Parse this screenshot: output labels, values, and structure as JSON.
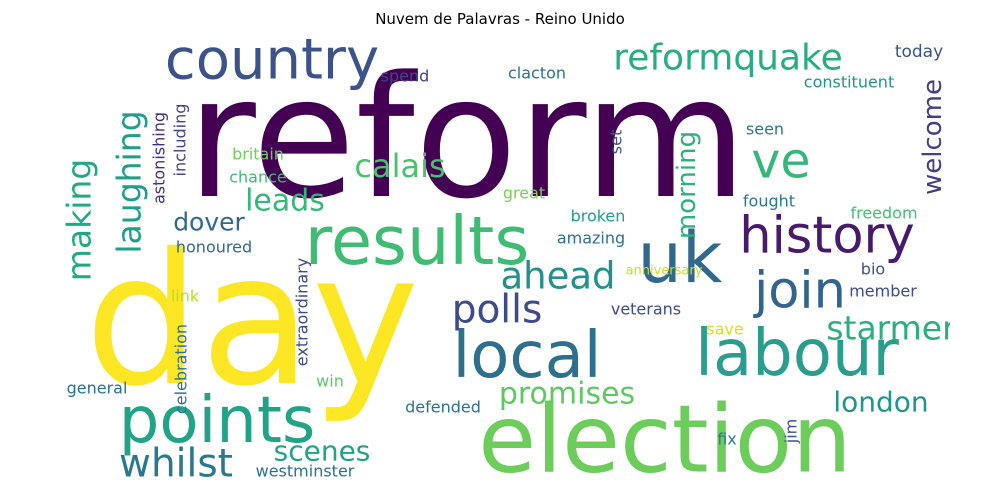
{
  "chart_data": {
    "type": "wordcloud",
    "title": "Nuvem de Palavras - Reino Unido",
    "colormap": "viridis",
    "background": "#ffffff",
    "words": [
      {
        "text": "reform",
        "weight": 1.0,
        "color": "#440154",
        "orientation": "horizontal"
      },
      {
        "text": "day",
        "weight": 0.97,
        "color": "#fde725",
        "orientation": "horizontal"
      },
      {
        "text": "election",
        "weight": 0.72,
        "color": "#6ccd5a",
        "orientation": "horizontal"
      },
      {
        "text": "uk",
        "weight": 0.5,
        "color": "#31688e",
        "orientation": "vertical"
      },
      {
        "text": "results",
        "weight": 0.5,
        "color": "#3fbc73",
        "orientation": "horizontal"
      },
      {
        "text": "labour",
        "weight": 0.49,
        "color": "#2a9d8f",
        "orientation": "horizontal"
      },
      {
        "text": "local",
        "weight": 0.48,
        "color": "#2d708e",
        "orientation": "horizontal"
      },
      {
        "text": "points",
        "weight": 0.48,
        "color": "#20a386",
        "orientation": "horizontal"
      },
      {
        "text": "country",
        "weight": 0.4,
        "color": "#3b528b",
        "orientation": "horizontal"
      },
      {
        "text": "history",
        "weight": 0.38,
        "color": "#481a6c",
        "orientation": "horizontal"
      },
      {
        "text": "join",
        "weight": 0.38,
        "color": "#32648e",
        "orientation": "horizontal"
      },
      {
        "text": "ve",
        "weight": 0.36,
        "color": "#35b779",
        "orientation": "horizontal"
      },
      {
        "text": "whilst",
        "weight": 0.3,
        "color": "#2a788e",
        "orientation": "horizontal"
      },
      {
        "text": "polls",
        "weight": 0.29,
        "color": "#3e4a89",
        "orientation": "horizontal"
      },
      {
        "text": "reformquake",
        "weight": 0.28,
        "color": "#27ad81",
        "orientation": "horizontal"
      },
      {
        "text": "ahead",
        "weight": 0.28,
        "color": "#21918c",
        "orientation": "horizontal"
      },
      {
        "text": "laughing",
        "weight": 0.27,
        "color": "#1f9e89",
        "orientation": "vertical"
      },
      {
        "text": "making",
        "weight": 0.27,
        "color": "#22a884",
        "orientation": "vertical"
      },
      {
        "text": "starmer",
        "weight": 0.26,
        "color": "#29af7f",
        "orientation": "horizontal"
      },
      {
        "text": "calais",
        "weight": 0.25,
        "color": "#4ac16d",
        "orientation": "horizontal"
      },
      {
        "text": "leads",
        "weight": 0.24,
        "color": "#35b779",
        "orientation": "horizontal"
      },
      {
        "text": "promises",
        "weight": 0.24,
        "color": "#5ec962",
        "orientation": "horizontal"
      },
      {
        "text": "scenes",
        "weight": 0.23,
        "color": "#20a486",
        "orientation": "horizontal"
      },
      {
        "text": "london",
        "weight": 0.22,
        "color": "#1f968b",
        "orientation": "horizontal"
      },
      {
        "text": "morning",
        "weight": 0.21,
        "color": "#2db27d",
        "orientation": "vertical"
      },
      {
        "text": "welcome",
        "weight": 0.21,
        "color": "#433e85",
        "orientation": "vertical"
      },
      {
        "text": "dover",
        "weight": 0.2,
        "color": "#31688e",
        "orientation": "horizontal"
      },
      {
        "text": "today",
        "weight": 0.13,
        "color": "#3b528b",
        "orientation": "horizontal"
      },
      {
        "text": "constituent",
        "weight": 0.12,
        "color": "#1f968b",
        "orientation": "horizontal"
      },
      {
        "text": "spend",
        "weight": 0.12,
        "color": "#414487",
        "orientation": "horizontal"
      },
      {
        "text": "clacton",
        "weight": 0.12,
        "color": "#2c728e",
        "orientation": "horizontal"
      },
      {
        "text": "seen",
        "weight": 0.12,
        "color": "#2a788e",
        "orientation": "horizontal"
      },
      {
        "text": "set",
        "weight": 0.12,
        "color": "#3b528b",
        "orientation": "vertical"
      },
      {
        "text": "britain",
        "weight": 0.12,
        "color": "#6ece58",
        "orientation": "horizontal"
      },
      {
        "text": "chance",
        "weight": 0.12,
        "color": "#3fbc73",
        "orientation": "horizontal"
      },
      {
        "text": "great",
        "weight": 0.12,
        "color": "#7ad151",
        "orientation": "horizontal"
      },
      {
        "text": "fought",
        "weight": 0.12,
        "color": "#2a788e",
        "orientation": "horizontal"
      },
      {
        "text": "freedom",
        "weight": 0.12,
        "color": "#44bf70",
        "orientation": "horizontal"
      },
      {
        "text": "broken",
        "weight": 0.12,
        "color": "#1f9e89",
        "orientation": "horizontal"
      },
      {
        "text": "amazing",
        "weight": 0.12,
        "color": "#2c728e",
        "orientation": "horizontal"
      },
      {
        "text": "honoured",
        "weight": 0.12,
        "color": "#31688e",
        "orientation": "horizontal"
      },
      {
        "text": "anniversary",
        "weight": 0.1,
        "color": "#c8e020",
        "orientation": "horizontal"
      },
      {
        "text": "bio",
        "weight": 0.12,
        "color": "#3b528b",
        "orientation": "horizontal"
      },
      {
        "text": "member",
        "weight": 0.12,
        "color": "#3e4a89",
        "orientation": "horizontal"
      },
      {
        "text": "link",
        "weight": 0.12,
        "color": "#b5de2b",
        "orientation": "horizontal"
      },
      {
        "text": "veterans",
        "weight": 0.12,
        "color": "#3e4a89",
        "orientation": "horizontal"
      },
      {
        "text": "save",
        "weight": 0.12,
        "color": "#d8e219",
        "orientation": "horizontal"
      },
      {
        "text": "win",
        "weight": 0.12,
        "color": "#5ec962",
        "orientation": "horizontal"
      },
      {
        "text": "general",
        "weight": 0.12,
        "color": "#2d708e",
        "orientation": "horizontal"
      },
      {
        "text": "defended",
        "weight": 0.12,
        "color": "#2c728e",
        "orientation": "horizontal"
      },
      {
        "text": "fix",
        "weight": 0.12,
        "color": "#2a788e",
        "orientation": "horizontal"
      },
      {
        "text": "jim",
        "weight": 0.12,
        "color": "#3b528b",
        "orientation": "vertical"
      },
      {
        "text": "westminster",
        "weight": 0.12,
        "color": "#2c728e",
        "orientation": "horizontal"
      },
      {
        "text": "astonishing",
        "weight": 0.12,
        "color": "#472d7b",
        "orientation": "vertical"
      },
      {
        "text": "including",
        "weight": 0.12,
        "color": "#414487",
        "orientation": "vertical"
      },
      {
        "text": "extraordinary",
        "weight": 0.12,
        "color": "#3e4a89",
        "orientation": "vertical"
      },
      {
        "text": "celebration",
        "weight": 0.12,
        "color": "#2d708e",
        "orientation": "vertical"
      }
    ]
  }
}
